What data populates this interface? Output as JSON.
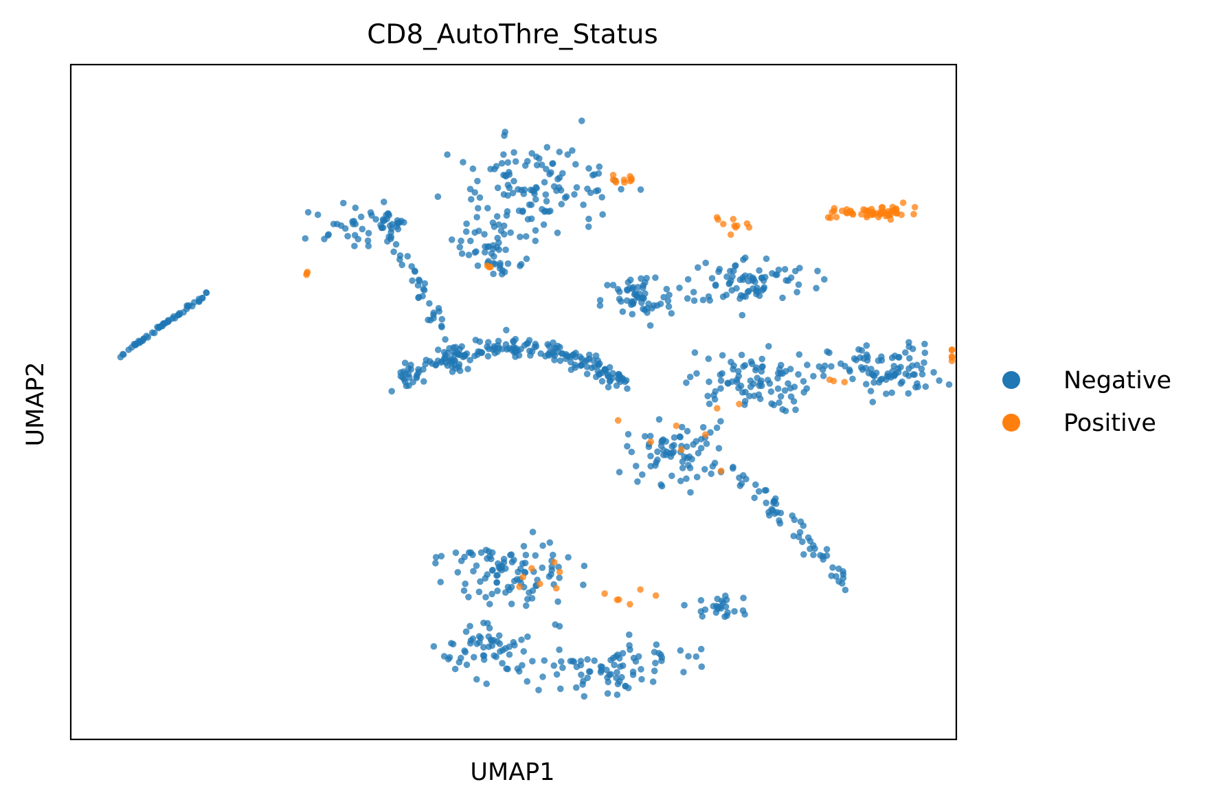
{
  "chart_data": {
    "type": "scatter",
    "title": "CD8_AutoThre_Status",
    "xlabel": "UMAP1",
    "ylabel": "UMAP2",
    "xlim": [
      0,
      1000
    ],
    "ylim": [
      0,
      1000
    ],
    "ticks": "none",
    "grid": false,
    "legend_position": "right",
    "series": [
      {
        "name": "Negative",
        "color": "#1f77b4",
        "clusters": [
          {
            "kind": "line",
            "from": [
              47,
              560
            ],
            "to": [
              155,
              662
            ],
            "n": 55,
            "spread": 3
          },
          {
            "kind": "arc",
            "center": [
              495,
              160
            ],
            "rx": 270,
            "ry": 420,
            "start": 2.05,
            "end": 1.05,
            "n": 190,
            "spread": 14
          },
          {
            "kind": "blob",
            "center": [
              310,
              760
            ],
            "rx": 55,
            "ry": 35,
            "n": 30
          },
          {
            "kind": "blob",
            "center": [
              480,
              740
            ],
            "rx": 55,
            "ry": 55,
            "n": 45
          },
          {
            "kind": "blob",
            "center": [
              520,
              820
            ],
            "rx": 110,
            "ry": 70,
            "n": 110
          },
          {
            "kind": "blob",
            "center": [
              360,
              765
            ],
            "rx": 25,
            "ry": 18,
            "n": 20
          },
          {
            "kind": "line",
            "from": [
              358,
              757
            ],
            "to": [
              440,
              545
            ],
            "n": 55,
            "spread": 10
          },
          {
            "kind": "blob",
            "center": [
              640,
              650
            ],
            "rx": 45,
            "ry": 45,
            "n": 55
          },
          {
            "kind": "blob",
            "center": [
              765,
              680
            ],
            "rx": 80,
            "ry": 40,
            "n": 80
          },
          {
            "kind": "blob",
            "center": [
              485,
              700
            ],
            "rx": 12,
            "ry": 12,
            "n": 10
          },
          {
            "kind": "blob",
            "center": [
              765,
              530
            ],
            "rx": 80,
            "ry": 50,
            "n": 90
          },
          {
            "kind": "blob",
            "center": [
              920,
              545
            ],
            "rx": 70,
            "ry": 45,
            "n": 85
          },
          {
            "kind": "blob",
            "center": [
              685,
              425
            ],
            "rx": 65,
            "ry": 50,
            "n": 75
          },
          {
            "kind": "line",
            "from": [
              755,
              392
            ],
            "to": [
              880,
              230
            ],
            "n": 55,
            "spread": 14
          },
          {
            "kind": "blob",
            "center": [
              490,
              250
            ],
            "rx": 80,
            "ry": 55,
            "n": 95
          },
          {
            "kind": "blob",
            "center": [
              465,
              135
            ],
            "rx": 60,
            "ry": 45,
            "n": 55
          },
          {
            "kind": "blob",
            "center": [
              610,
              110
            ],
            "rx": 110,
            "ry": 40,
            "n": 85
          },
          {
            "kind": "blob",
            "center": [
              735,
              195
            ],
            "rx": 35,
            "ry": 18,
            "n": 25
          }
        ]
      },
      {
        "name": "Positive",
        "color": "#ff7f0e",
        "clusters": [
          {
            "kind": "blob",
            "center": [
              910,
              780
            ],
            "rx": 50,
            "ry": 10,
            "n": 55
          },
          {
            "kind": "blob",
            "center": [
              620,
              830
            ],
            "rx": 18,
            "ry": 8,
            "n": 10
          },
          {
            "kind": "blob",
            "center": [
              750,
              765
            ],
            "rx": 30,
            "ry": 12,
            "n": 10
          },
          {
            "kind": "blob",
            "center": [
              265,
              690
            ],
            "rx": 5,
            "ry": 4,
            "n": 3
          },
          {
            "kind": "blob",
            "center": [
              475,
              700
            ],
            "rx": 8,
            "ry": 5,
            "n": 3
          },
          {
            "kind": "blob",
            "center": [
              700,
              435
            ],
            "rx": 80,
            "ry": 70,
            "n": 8
          },
          {
            "kind": "blob",
            "center": [
              1010,
              575
            ],
            "rx": 25,
            "ry": 20,
            "n": 5
          },
          {
            "kind": "blob",
            "center": [
              865,
              530
            ],
            "rx": 20,
            "ry": 8,
            "n": 3
          },
          {
            "kind": "blob",
            "center": [
              525,
              240
            ],
            "rx": 40,
            "ry": 30,
            "n": 7
          },
          {
            "kind": "blob",
            "center": [
              630,
              215
            ],
            "rx": 35,
            "ry": 25,
            "n": 6
          }
        ]
      }
    ]
  }
}
